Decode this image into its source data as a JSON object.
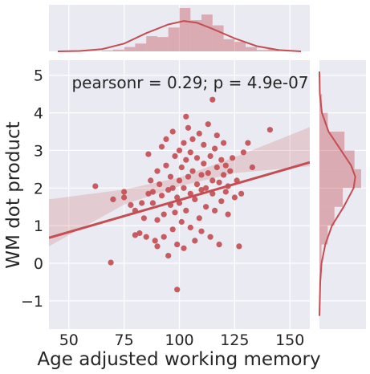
{
  "chart_data": {
    "type": "scatter",
    "title": "",
    "xlabel": "Age adjusted working memory",
    "ylabel": "WM dot product",
    "xlim": [
      41,
      159
    ],
    "ylim": [
      -1.75,
      5.4
    ],
    "xticks": [
      50,
      75,
      100,
      125,
      150
    ],
    "yticks": [
      -1,
      0,
      1,
      2,
      3,
      4,
      5
    ],
    "ytick_labels": [
      "−1",
      "0",
      "1",
      "2",
      "3",
      "4",
      "5"
    ],
    "grid": true,
    "annotation": "pearsonr = 0.29; p = 4.9e-07",
    "colors": {
      "point": "#c44e52",
      "background": "#eaeaf2",
      "grid": "#ffffff"
    },
    "regression": {
      "slope": 0.017,
      "intercept": -0.02,
      "ci_band": [
        [
          41,
          0.45,
          1.7
        ],
        [
          75,
          1.56,
          1.96
        ],
        [
          100,
          2.05,
          2.28
        ],
        [
          125,
          2.4,
          2.82
        ],
        [
          159,
          2.58,
          3.62
        ]
      ]
    },
    "marginal_x_hist": {
      "bins": [
        [
          40,
          0.0
        ],
        [
          45,
          0.0
        ],
        [
          50,
          0.0
        ],
        [
          55,
          0.0
        ],
        [
          60,
          0.0
        ],
        [
          65,
          0.02
        ],
        [
          70,
          0.04
        ],
        [
          75,
          0.1
        ],
        [
          80,
          0.18
        ],
        [
          85,
          0.35
        ],
        [
          90,
          0.33
        ],
        [
          95,
          0.55
        ],
        [
          100,
          1.0
        ],
        [
          105,
          0.72
        ],
        [
          110,
          0.85
        ],
        [
          115,
          0.6
        ],
        [
          120,
          0.28
        ],
        [
          125,
          0.22
        ],
        [
          130,
          0.1
        ],
        [
          135,
          0.03
        ],
        [
          140,
          0.05
        ],
        [
          145,
          0.0
        ],
        [
          150,
          0.0
        ],
        [
          155,
          0.0
        ]
      ],
      "kde": [
        [
          45,
          0.0
        ],
        [
          55,
          0.01
        ],
        [
          65,
          0.05
        ],
        [
          75,
          0.18
        ],
        [
          85,
          0.42
        ],
        [
          95,
          0.62
        ],
        [
          102,
          0.7
        ],
        [
          108,
          0.66
        ],
        [
          115,
          0.52
        ],
        [
          125,
          0.3
        ],
        [
          135,
          0.12
        ],
        [
          145,
          0.03
        ],
        [
          155,
          0.0
        ]
      ]
    },
    "marginal_y_hist": {
      "bins": [
        [
          -1.0,
          0.02
        ],
        [
          -0.5,
          0.03
        ],
        [
          0.0,
          0.05
        ],
        [
          0.5,
          0.2
        ],
        [
          1.0,
          0.36
        ],
        [
          1.5,
          0.56
        ],
        [
          2.0,
          1.0
        ],
        [
          2.5,
          0.84
        ],
        [
          3.0,
          0.6
        ],
        [
          3.5,
          0.2
        ],
        [
          4.0,
          0.06
        ],
        [
          4.5,
          0.02
        ]
      ],
      "kde": [
        [
          -1.4,
          0.0
        ],
        [
          -0.5,
          0.02
        ],
        [
          0.0,
          0.05
        ],
        [
          0.5,
          0.14
        ],
        [
          1.0,
          0.3
        ],
        [
          1.5,
          0.58
        ],
        [
          2.0,
          0.82
        ],
        [
          2.3,
          0.86
        ],
        [
          2.6,
          0.76
        ],
        [
          3.0,
          0.52
        ],
        [
          3.5,
          0.22
        ],
        [
          4.0,
          0.06
        ],
        [
          4.5,
          0.01
        ],
        [
          5.1,
          0.0
        ]
      ]
    },
    "points": [
      [
        62,
        2.05
      ],
      [
        69,
        0.02
      ],
      [
        70,
        1.7
      ],
      [
        75,
        1.75
      ],
      [
        75,
        1.9
      ],
      [
        78,
        1.55
      ],
      [
        80,
        1.4
      ],
      [
        80,
        0.75
      ],
      [
        82,
        0.8
      ],
      [
        83,
        1.6
      ],
      [
        84,
        1.2
      ],
      [
        85,
        0.7
      ],
      [
        86,
        1.85
      ],
      [
        86,
        2.9
      ],
      [
        87,
        2.2
      ],
      [
        88,
        1.9
      ],
      [
        88,
        1.6
      ],
      [
        89,
        0.6
      ],
      [
        90,
        0.45
      ],
      [
        90,
        1.15
      ],
      [
        90,
        2.45
      ],
      [
        91,
        2.1
      ],
      [
        92,
        1.8
      ],
      [
        92,
        3.1
      ],
      [
        93,
        1.3
      ],
      [
        93,
        0.7
      ],
      [
        94,
        2.6
      ],
      [
        94,
        3.3
      ],
      [
        95,
        1.95
      ],
      [
        95,
        0.2
      ],
      [
        96,
        2.3
      ],
      [
        96,
        1.55
      ],
      [
        97,
        3.5
      ],
      [
        97,
        2.0
      ],
      [
        97,
        0.9
      ],
      [
        98,
        2.85
      ],
      [
        98,
        1.35
      ],
      [
        99,
        1.75
      ],
      [
        99,
        0.5
      ],
      [
        99,
        -0.7
      ],
      [
        100,
        2.2
      ],
      [
        100,
        3.0
      ],
      [
        100,
        1.6
      ],
      [
        101,
        2.55
      ],
      [
        101,
        1.1
      ],
      [
        102,
        3.2
      ],
      [
        102,
        2.0
      ],
      [
        102,
        0.4
      ],
      [
        103,
        3.9
      ],
      [
        103,
        2.75
      ],
      [
        103,
        1.4
      ],
      [
        104,
        2.3
      ],
      [
        104,
        3.6
      ],
      [
        105,
        1.85
      ],
      [
        105,
        0.95
      ],
      [
        105,
        2.95
      ],
      [
        106,
        2.45
      ],
      [
        106,
        3.3
      ],
      [
        107,
        1.7
      ],
      [
        107,
        0.6
      ],
      [
        108,
        2.1
      ],
      [
        108,
        2.8
      ],
      [
        109,
        3.45
      ],
      [
        109,
        1.2
      ],
      [
        110,
        2.35
      ],
      [
        110,
        1.95
      ],
      [
        110,
        0.85
      ],
      [
        111,
        2.65
      ],
      [
        111,
        3.15
      ],
      [
        112,
        2.0
      ],
      [
        112,
        1.5
      ],
      [
        113,
        3.7
      ],
      [
        113,
        2.4
      ],
      [
        114,
        2.85
      ],
      [
        114,
        0.7
      ],
      [
        115,
        4.35
      ],
      [
        115,
        2.2
      ],
      [
        115,
        1.85
      ],
      [
        116,
        3.05
      ],
      [
        116,
        1.4
      ],
      [
        117,
        2.55
      ],
      [
        117,
        3.4
      ],
      [
        118,
        2.15
      ],
      [
        118,
        0.5
      ],
      [
        119,
        2.75
      ],
      [
        119,
        1.65
      ],
      [
        120,
        3.2
      ],
      [
        120,
        2.35
      ],
      [
        121,
        1.9
      ],
      [
        121,
        2.6
      ],
      [
        122,
        2.05
      ],
      [
        122,
        1.3
      ],
      [
        123,
        2.45
      ],
      [
        124,
        2.8
      ],
      [
        125,
        1.75
      ],
      [
        126,
        2.2
      ],
      [
        127,
        0.45
      ],
      [
        128,
        1.85
      ],
      [
        129,
        2.95
      ],
      [
        131,
        3.2
      ],
      [
        133,
        2.55
      ],
      [
        141,
        3.55
      ]
    ]
  }
}
